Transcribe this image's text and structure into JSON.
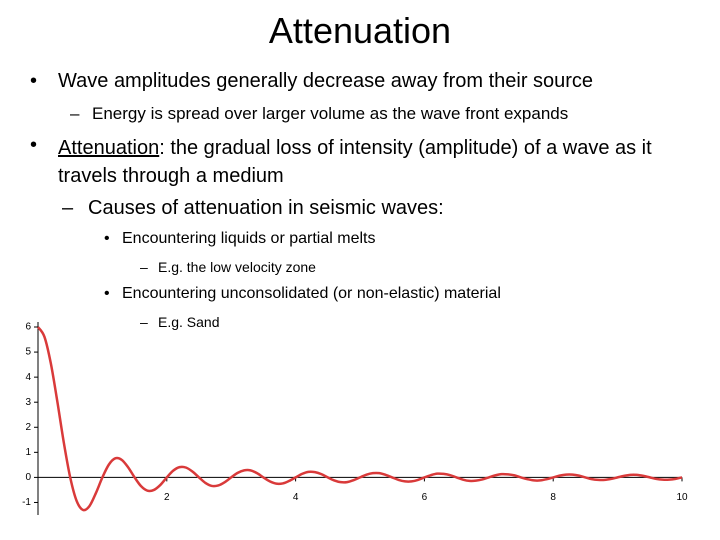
{
  "title": "Attenuation",
  "items": [
    {
      "text": "Wave amplitudes generally decrease away from their source",
      "sub": [
        {
          "text": "Energy is spread over larger volume as the wave front expands"
        }
      ]
    },
    {
      "term": "Attenuation",
      "text": ": the gradual loss of intensity (amplitude) of a wave as it travels through a medium",
      "sub": [
        {
          "text": "Causes of attenuation in seismic waves:",
          "sub": [
            {
              "text": "Encountering liquids or partial melts",
              "sub": [
                {
                  "text": "E.g. the low velocity zone"
                }
              ]
            },
            {
              "text": "Encountering unconsolidated (or non-elastic) material",
              "sub": [
                {
                  "text": "E.g. Sand"
                }
              ]
            }
          ]
        }
      ]
    }
  ],
  "chart_data": {
    "type": "line",
    "color": "#d93a3a",
    "x": [
      0,
      0.1,
      0.2,
      0.3,
      0.4,
      0.5,
      0.6,
      0.7,
      0.8,
      0.9,
      1,
      1.1,
      1.2,
      1.3,
      1.4,
      1.5,
      1.6,
      1.7,
      1.8,
      1.9,
      2,
      2.1,
      2.2,
      2.3,
      2.4,
      2.5,
      2.6,
      2.7,
      2.8,
      2.9,
      3,
      3.1,
      3.2,
      3.3,
      3.4,
      3.5,
      3.6,
      3.7,
      3.8,
      3.9,
      4,
      4.1,
      4.2,
      4.3,
      4.4,
      4.5,
      4.6,
      4.7,
      4.8,
      4.9,
      5,
      5.1,
      5.2,
      5.3,
      5.4,
      5.5,
      5.6,
      5.7,
      5.8,
      5.9,
      6,
      6.1,
      6.2,
      6.3,
      6.4,
      6.5,
      6.6,
      6.7,
      6.8,
      6.9,
      7,
      7.1,
      7.2,
      7.3,
      7.4,
      7.5,
      7.6,
      7.7,
      7.8,
      7.9,
      8,
      8.1,
      8.2,
      8.3,
      8.4,
      8.5,
      8.6,
      8.7,
      8.8,
      8.9,
      9,
      9.1,
      9.2,
      9.3,
      9.4,
      9.5,
      9.6,
      9.7,
      9.8,
      9.9,
      10
    ],
    "values": [
      6,
      5.61,
      4.54,
      3.03,
      1.4,
      0,
      -0.94,
      -1.3,
      -1.14,
      -0.62,
      0,
      0.51,
      0.76,
      0.7,
      0.4,
      0,
      -0.35,
      -0.53,
      -0.5,
      -0.3,
      0,
      0.27,
      0.41,
      0.39,
      0.23,
      0,
      -0.22,
      -0.34,
      -0.32,
      -0.19,
      0,
      0.18,
      0.28,
      0.28,
      0.17,
      0,
      -0.16,
      -0.25,
      -0.24,
      -0.14,
      0,
      0.14,
      0.22,
      0.21,
      0.13,
      0,
      -0.12,
      -0.19,
      -0.19,
      -0.11,
      0,
      0.11,
      0.17,
      0.17,
      0.1,
      0,
      -0.1,
      -0.16,
      -0.16,
      -0.1,
      0,
      0.09,
      0.15,
      0.14,
      0.09,
      0,
      -0.09,
      -0.14,
      -0.13,
      -0.08,
      0,
      0.08,
      0.13,
      0.12,
      0.08,
      0,
      -0.07,
      -0.12,
      -0.12,
      -0.07,
      0,
      0.07,
      0.11,
      0.11,
      0.07,
      0,
      -0.07,
      -0.1,
      -0.1,
      -0.06,
      0,
      0.06,
      0.1,
      0.1,
      0.06,
      0,
      -0.06,
      -0.09,
      -0.09,
      -0.06,
      0
    ],
    "xlim": [
      0,
      10
    ],
    "ylim": [
      -1.5,
      6.2
    ],
    "xticks": [
      2,
      4,
      6,
      8,
      10
    ],
    "yticks": [
      -1,
      0,
      1,
      2,
      3,
      4,
      5,
      6
    ]
  }
}
